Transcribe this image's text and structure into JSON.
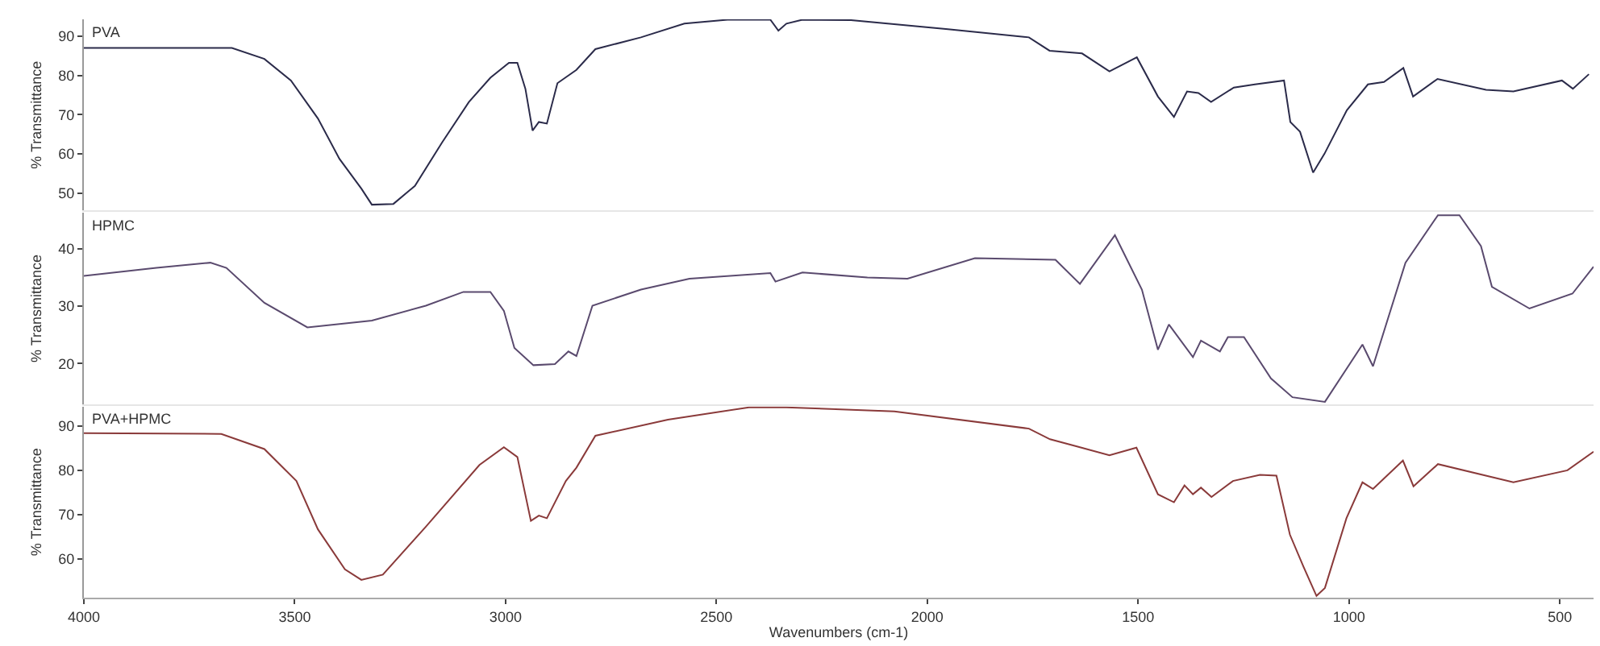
{
  "chart_data": [
    {
      "type": "line",
      "title": "PVA",
      "ylabel": "% Transmittance",
      "xlim": [
        4000,
        420
      ],
      "xticks": [
        4000,
        3500,
        3000,
        2500,
        2000,
        1500,
        1000,
        500
      ],
      "ylim": [
        45.5,
        94.3
      ],
      "yticks": [
        50,
        60,
        70,
        80,
        90
      ],
      "tick_labels": "y",
      "series": [
        {
          "color": "#2b2b4a",
          "x": [
            4000,
            3987,
            3649,
            3572,
            3509,
            3445,
            3394,
            3342,
            3317,
            3266,
            3215,
            3151,
            3087,
            3036,
            2992,
            2972,
            2953,
            2936,
            2921,
            2902,
            2877,
            2832,
            2787,
            2679,
            2576,
            2474,
            2372,
            2353,
            2334,
            2296,
            2181,
            1951,
            1759,
            1710,
            1633,
            1568,
            1503,
            1453,
            1415,
            1384,
            1357,
            1327,
            1273,
            1223,
            1154,
            1139,
            1116,
            1085,
            1058,
            1005,
            955,
            917,
            871,
            848,
            790,
            675,
            610,
            495,
            469,
            431
          ],
          "values": [
            87.0,
            87.0,
            87.0,
            84.2,
            78.7,
            69.0,
            58.7,
            51.1,
            47.0,
            47.2,
            51.8,
            62.8,
            73.2,
            79.4,
            83.2,
            83.2,
            76.6,
            65.9,
            68.1,
            67.7,
            78.0,
            81.4,
            86.7,
            89.7,
            93.2,
            94.2,
            94.2,
            91.4,
            93.2,
            94.2,
            94.1,
            91.8,
            89.7,
            86.3,
            85.6,
            81.0,
            84.6,
            74.6,
            69.4,
            75.9,
            75.5,
            73.2,
            76.9,
            77.7,
            78.7,
            68.1,
            65.6,
            55.2,
            60.0,
            71.1,
            77.7,
            78.3,
            81.9,
            74.6,
            79.1,
            76.3,
            75.9,
            78.7,
            76.6,
            80.3
          ]
        }
      ]
    },
    {
      "type": "line",
      "title": "HPMC",
      "ylabel": "% Transmittance",
      "xlim": [
        4000,
        420
      ],
      "xticks": [
        4000,
        3500,
        3000,
        2500,
        2000,
        1500,
        1000,
        500
      ],
      "ylim": [
        12.9,
        46.3
      ],
      "yticks": [
        20,
        30,
        40
      ],
      "tick_labels": "y",
      "series": [
        {
          "color": "#5a4a6e",
          "x": [
            4000,
            3828,
            3700,
            3662,
            3572,
            3470,
            3317,
            3189,
            3100,
            3036,
            3004,
            2979,
            2934,
            2883,
            2851,
            2832,
            2794,
            2679,
            2564,
            2372,
            2360,
            2296,
            2142,
            2047,
            1887,
            1696,
            1638,
            1555,
            1491,
            1453,
            1427,
            1370,
            1351,
            1306,
            1287,
            1249,
            1185,
            1134,
            1057,
            968,
            943,
            866,
            789,
            738,
            687,
            661,
            572,
            470,
            420
          ],
          "values": [
            35.3,
            36.7,
            37.6,
            36.7,
            30.6,
            26.3,
            27.5,
            30.1,
            32.5,
            32.5,
            29.2,
            22.7,
            19.7,
            19.9,
            22.1,
            21.3,
            30.1,
            32.9,
            34.8,
            35.8,
            34.3,
            35.9,
            35.0,
            34.8,
            38.4,
            38.1,
            33.9,
            42.4,
            32.9,
            22.4,
            26.8,
            21.1,
            24.0,
            22.1,
            24.6,
            24.6,
            17.4,
            14.1,
            13.3,
            23.3,
            19.5,
            37.6,
            45.9,
            45.9,
            40.5,
            33.4,
            29.6,
            32.2,
            36.9
          ]
        }
      ]
    },
    {
      "type": "line",
      "title": "PVA+HPMC",
      "ylabel": "% Transmittance",
      "xlabel": "Wavenumbers (cm-1)",
      "xlim": [
        4000,
        420
      ],
      "xticks": [
        4000,
        3500,
        3000,
        2500,
        2000,
        1500,
        1000,
        500
      ],
      "ylim": [
        51.3,
        94.4
      ],
      "yticks": [
        60,
        70,
        80,
        90
      ],
      "series": [
        {
          "color": "#8a3a3a",
          "x": [
            4000,
            3674,
            3572,
            3496,
            3445,
            3381,
            3342,
            3291,
            3189,
            3062,
            3004,
            2972,
            2940,
            2921,
            2902,
            2857,
            2832,
            2787,
            2615,
            2423,
            2334,
            2078,
            1759,
            1709,
            1645,
            1568,
            1504,
            1453,
            1415,
            1390,
            1370,
            1351,
            1326,
            1275,
            1211,
            1172,
            1140,
            1108,
            1077,
            1057,
            1006,
            968,
            943,
            872,
            847,
            789,
            610,
            482,
            420
          ],
          "values": [
            88.4,
            88.2,
            84.8,
            77.6,
            66.7,
            57.7,
            55.3,
            56.5,
            67.3,
            81.2,
            85.2,
            83.0,
            68.6,
            69.8,
            69.2,
            77.6,
            80.6,
            87.8,
            91.4,
            94.2,
            94.2,
            93.3,
            89.4,
            87.0,
            85.4,
            83.4,
            85.1,
            74.6,
            72.8,
            76.6,
            74.6,
            76.1,
            74.0,
            77.6,
            79.0,
            78.8,
            65.5,
            58.3,
            51.7,
            53.5,
            69.2,
            77.3,
            75.8,
            82.2,
            76.4,
            81.4,
            77.3,
            80.0,
            84.2
          ]
        }
      ]
    }
  ]
}
